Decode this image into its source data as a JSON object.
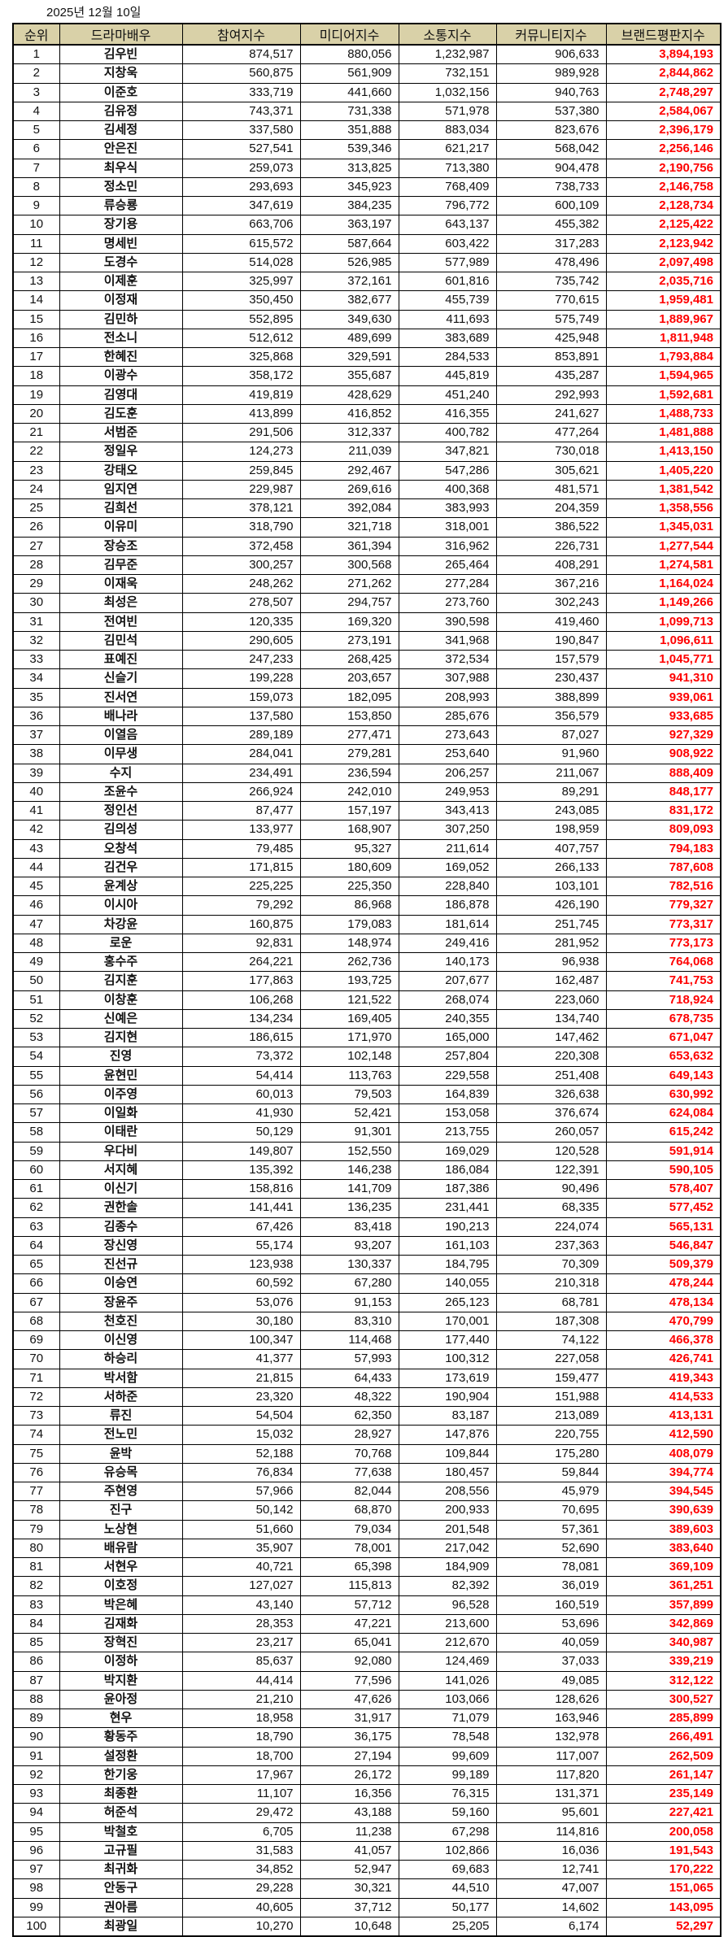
{
  "title": "2025년 12월 10일",
  "accent_color": "#ff0000",
  "header_color": "#d9d1a8",
  "columns": [
    "순위",
    "드라마배우",
    "참여지수",
    "미디어지수",
    "소통지수",
    "커뮤니티지수",
    "브랜드평판지수"
  ],
  "rows": [
    [
      "1",
      "김우빈",
      "874,517",
      "880,056",
      "1,232,987",
      "906,633",
      "3,894,193"
    ],
    [
      "2",
      "지창욱",
      "560,875",
      "561,909",
      "732,151",
      "989,928",
      "2,844,862"
    ],
    [
      "3",
      "이준호",
      "333,719",
      "441,660",
      "1,032,156",
      "940,763",
      "2,748,297"
    ],
    [
      "4",
      "김유정",
      "743,371",
      "731,338",
      "571,978",
      "537,380",
      "2,584,067"
    ],
    [
      "5",
      "김세정",
      "337,580",
      "351,888",
      "883,034",
      "823,676",
      "2,396,179"
    ],
    [
      "6",
      "안은진",
      "527,541",
      "539,346",
      "621,217",
      "568,042",
      "2,256,146"
    ],
    [
      "7",
      "최우식",
      "259,073",
      "313,825",
      "713,380",
      "904,478",
      "2,190,756"
    ],
    [
      "8",
      "정소민",
      "293,693",
      "345,923",
      "768,409",
      "738,733",
      "2,146,758"
    ],
    [
      "9",
      "류승룡",
      "347,619",
      "384,235",
      "796,772",
      "600,109",
      "2,128,734"
    ],
    [
      "10",
      "장기용",
      "663,706",
      "363,197",
      "643,137",
      "455,382",
      "2,125,422"
    ],
    [
      "11",
      "명세빈",
      "615,572",
      "587,664",
      "603,422",
      "317,283",
      "2,123,942"
    ],
    [
      "12",
      "도경수",
      "514,028",
      "526,985",
      "577,989",
      "478,496",
      "2,097,498"
    ],
    [
      "13",
      "이제훈",
      "325,997",
      "372,161",
      "601,816",
      "735,742",
      "2,035,716"
    ],
    [
      "14",
      "이정재",
      "350,450",
      "382,677",
      "455,739",
      "770,615",
      "1,959,481"
    ],
    [
      "15",
      "김민하",
      "552,895",
      "349,630",
      "411,693",
      "575,749",
      "1,889,967"
    ],
    [
      "16",
      "전소니",
      "512,612",
      "489,699",
      "383,689",
      "425,948",
      "1,811,948"
    ],
    [
      "17",
      "한혜진",
      "325,868",
      "329,591",
      "284,533",
      "853,891",
      "1,793,884"
    ],
    [
      "18",
      "이광수",
      "358,172",
      "355,687",
      "445,819",
      "435,287",
      "1,594,965"
    ],
    [
      "19",
      "김영대",
      "419,819",
      "428,629",
      "451,240",
      "292,993",
      "1,592,681"
    ],
    [
      "20",
      "김도훈",
      "413,899",
      "416,852",
      "416,355",
      "241,627",
      "1,488,733"
    ],
    [
      "21",
      "서범준",
      "291,506",
      "312,337",
      "400,782",
      "477,264",
      "1,481,888"
    ],
    [
      "22",
      "정일우",
      "124,273",
      "211,039",
      "347,821",
      "730,018",
      "1,413,150"
    ],
    [
      "23",
      "강태오",
      "259,845",
      "292,467",
      "547,286",
      "305,621",
      "1,405,220"
    ],
    [
      "24",
      "임지연",
      "229,987",
      "269,616",
      "400,368",
      "481,571",
      "1,381,542"
    ],
    [
      "25",
      "김희선",
      "378,121",
      "392,084",
      "383,993",
      "204,359",
      "1,358,556"
    ],
    [
      "26",
      "이유미",
      "318,790",
      "321,718",
      "318,001",
      "386,522",
      "1,345,031"
    ],
    [
      "27",
      "장승조",
      "372,458",
      "361,394",
      "316,962",
      "226,731",
      "1,277,544"
    ],
    [
      "28",
      "김무준",
      "300,257",
      "300,568",
      "265,464",
      "408,291",
      "1,274,581"
    ],
    [
      "29",
      "이재욱",
      "248,262",
      "271,262",
      "277,284",
      "367,216",
      "1,164,024"
    ],
    [
      "30",
      "최성은",
      "278,507",
      "294,757",
      "273,760",
      "302,243",
      "1,149,266"
    ],
    [
      "31",
      "전여빈",
      "120,335",
      "169,320",
      "390,598",
      "419,460",
      "1,099,713"
    ],
    [
      "32",
      "김민석",
      "290,605",
      "273,191",
      "341,968",
      "190,847",
      "1,096,611"
    ],
    [
      "33",
      "표예진",
      "247,233",
      "268,425",
      "372,534",
      "157,579",
      "1,045,771"
    ],
    [
      "34",
      "신슬기",
      "199,228",
      "203,657",
      "307,988",
      "230,437",
      "941,310"
    ],
    [
      "35",
      "진서연",
      "159,073",
      "182,095",
      "208,993",
      "388,899",
      "939,061"
    ],
    [
      "36",
      "배나라",
      "137,580",
      "153,850",
      "285,676",
      "356,579",
      "933,685"
    ],
    [
      "37",
      "이열음",
      "289,189",
      "277,471",
      "273,643",
      "87,027",
      "927,329"
    ],
    [
      "38",
      "이무생",
      "284,041",
      "279,281",
      "253,640",
      "91,960",
      "908,922"
    ],
    [
      "39",
      "수지",
      "234,491",
      "236,594",
      "206,257",
      "211,067",
      "888,409"
    ],
    [
      "40",
      "조윤수",
      "266,924",
      "242,010",
      "249,953",
      "89,291",
      "848,177"
    ],
    [
      "41",
      "정인선",
      "87,477",
      "157,197",
      "343,413",
      "243,085",
      "831,172"
    ],
    [
      "42",
      "김의성",
      "133,977",
      "168,907",
      "307,250",
      "198,959",
      "809,093"
    ],
    [
      "43",
      "오창석",
      "79,485",
      "95,327",
      "211,614",
      "407,757",
      "794,183"
    ],
    [
      "44",
      "김건우",
      "171,815",
      "180,609",
      "169,052",
      "266,133",
      "787,608"
    ],
    [
      "45",
      "윤계상",
      "225,225",
      "225,350",
      "228,840",
      "103,101",
      "782,516"
    ],
    [
      "46",
      "이시아",
      "79,292",
      "86,968",
      "186,878",
      "426,190",
      "779,327"
    ],
    [
      "47",
      "차강윤",
      "160,875",
      "179,083",
      "181,614",
      "251,745",
      "773,317"
    ],
    [
      "48",
      "로운",
      "92,831",
      "148,974",
      "249,416",
      "281,952",
      "773,173"
    ],
    [
      "49",
      "홍수주",
      "264,221",
      "262,736",
      "140,173",
      "96,938",
      "764,068"
    ],
    [
      "50",
      "김지훈",
      "177,863",
      "193,725",
      "207,677",
      "162,487",
      "741,753"
    ],
    [
      "51",
      "이창훈",
      "106,268",
      "121,522",
      "268,074",
      "223,060",
      "718,924"
    ],
    [
      "52",
      "신예은",
      "134,234",
      "169,405",
      "240,355",
      "134,740",
      "678,735"
    ],
    [
      "53",
      "김지현",
      "186,615",
      "171,970",
      "165,000",
      "147,462",
      "671,047"
    ],
    [
      "54",
      "진영",
      "73,372",
      "102,148",
      "257,804",
      "220,308",
      "653,632"
    ],
    [
      "55",
      "윤현민",
      "54,414",
      "113,763",
      "229,558",
      "251,408",
      "649,143"
    ],
    [
      "56",
      "이주영",
      "60,013",
      "79,503",
      "164,839",
      "326,638",
      "630,992"
    ],
    [
      "57",
      "이일화",
      "41,930",
      "52,421",
      "153,058",
      "376,674",
      "624,084"
    ],
    [
      "58",
      "이태란",
      "50,129",
      "91,301",
      "213,755",
      "260,057",
      "615,242"
    ],
    [
      "59",
      "우다비",
      "149,807",
      "152,550",
      "169,029",
      "120,528",
      "591,914"
    ],
    [
      "60",
      "서지혜",
      "135,392",
      "146,238",
      "186,084",
      "122,391",
      "590,105"
    ],
    [
      "61",
      "이신기",
      "158,816",
      "141,709",
      "187,386",
      "90,496",
      "578,407"
    ],
    [
      "62",
      "권한솔",
      "141,441",
      "136,235",
      "231,441",
      "68,335",
      "577,452"
    ],
    [
      "63",
      "김종수",
      "67,426",
      "83,418",
      "190,213",
      "224,074",
      "565,131"
    ],
    [
      "64",
      "장신영",
      "55,174",
      "93,207",
      "161,103",
      "237,363",
      "546,847"
    ],
    [
      "65",
      "진선규",
      "123,938",
      "130,337",
      "184,795",
      "70,309",
      "509,379"
    ],
    [
      "66",
      "이승연",
      "60,592",
      "67,280",
      "140,055",
      "210,318",
      "478,244"
    ],
    [
      "67",
      "장윤주",
      "53,076",
      "91,153",
      "265,123",
      "68,781",
      "478,134"
    ],
    [
      "68",
      "천호진",
      "30,180",
      "83,310",
      "170,001",
      "187,308",
      "470,799"
    ],
    [
      "69",
      "이신영",
      "100,347",
      "114,468",
      "177,440",
      "74,122",
      "466,378"
    ],
    [
      "70",
      "하승리",
      "41,377",
      "57,993",
      "100,312",
      "227,058",
      "426,741"
    ],
    [
      "71",
      "박서함",
      "21,815",
      "64,433",
      "173,619",
      "159,477",
      "419,343"
    ],
    [
      "72",
      "서하준",
      "23,320",
      "48,322",
      "190,904",
      "151,988",
      "414,533"
    ],
    [
      "73",
      "류진",
      "54,504",
      "62,350",
      "83,187",
      "213,089",
      "413,131"
    ],
    [
      "74",
      "전노민",
      "15,032",
      "28,927",
      "147,876",
      "220,755",
      "412,590"
    ],
    [
      "75",
      "윤박",
      "52,188",
      "70,768",
      "109,844",
      "175,280",
      "408,079"
    ],
    [
      "76",
      "유승목",
      "76,834",
      "77,638",
      "180,457",
      "59,844",
      "394,774"
    ],
    [
      "77",
      "주현영",
      "57,966",
      "82,044",
      "208,556",
      "45,979",
      "394,545"
    ],
    [
      "78",
      "진구",
      "50,142",
      "68,870",
      "200,933",
      "70,695",
      "390,639"
    ],
    [
      "79",
      "노상현",
      "51,660",
      "79,034",
      "201,548",
      "57,361",
      "389,603"
    ],
    [
      "80",
      "배유람",
      "35,907",
      "78,001",
      "217,042",
      "52,690",
      "383,640"
    ],
    [
      "81",
      "서현우",
      "40,721",
      "65,398",
      "184,909",
      "78,081",
      "369,109"
    ],
    [
      "82",
      "이호정",
      "127,027",
      "115,813",
      "82,392",
      "36,019",
      "361,251"
    ],
    [
      "83",
      "박은혜",
      "43,140",
      "57,712",
      "96,528",
      "160,519",
      "357,899"
    ],
    [
      "84",
      "김재화",
      "28,353",
      "47,221",
      "213,600",
      "53,696",
      "342,869"
    ],
    [
      "85",
      "장혁진",
      "23,217",
      "65,041",
      "212,670",
      "40,059",
      "340,987"
    ],
    [
      "86",
      "이정하",
      "85,637",
      "92,080",
      "124,469",
      "37,033",
      "339,219"
    ],
    [
      "87",
      "박지환",
      "44,414",
      "77,596",
      "141,026",
      "49,085",
      "312,122"
    ],
    [
      "88",
      "윤아정",
      "21,210",
      "47,626",
      "103,066",
      "128,626",
      "300,527"
    ],
    [
      "89",
      "현우",
      "18,958",
      "31,917",
      "71,079",
      "163,946",
      "285,899"
    ],
    [
      "90",
      "황동주",
      "18,790",
      "36,175",
      "78,548",
      "132,978",
      "266,491"
    ],
    [
      "91",
      "설정환",
      "18,700",
      "27,194",
      "99,609",
      "117,007",
      "262,509"
    ],
    [
      "92",
      "한기웅",
      "17,967",
      "26,172",
      "99,189",
      "117,820",
      "261,147"
    ],
    [
      "93",
      "최종환",
      "11,107",
      "16,356",
      "76,315",
      "131,371",
      "235,149"
    ],
    [
      "94",
      "허준석",
      "29,472",
      "43,188",
      "59,160",
      "95,601",
      "227,421"
    ],
    [
      "95",
      "박철호",
      "6,705",
      "11,238",
      "67,298",
      "114,816",
      "200,058"
    ],
    [
      "96",
      "고규필",
      "31,583",
      "41,057",
      "102,866",
      "16,036",
      "191,543"
    ],
    [
      "97",
      "최귀화",
      "34,852",
      "52,947",
      "69,683",
      "12,741",
      "170,222"
    ],
    [
      "98",
      "안동구",
      "29,228",
      "30,321",
      "44,510",
      "47,007",
      "151,065"
    ],
    [
      "99",
      "권아름",
      "40,605",
      "37,712",
      "50,177",
      "14,602",
      "143,095"
    ],
    [
      "100",
      "최광일",
      "10,270",
      "10,648",
      "25,205",
      "6,174",
      "52,297"
    ]
  ]
}
